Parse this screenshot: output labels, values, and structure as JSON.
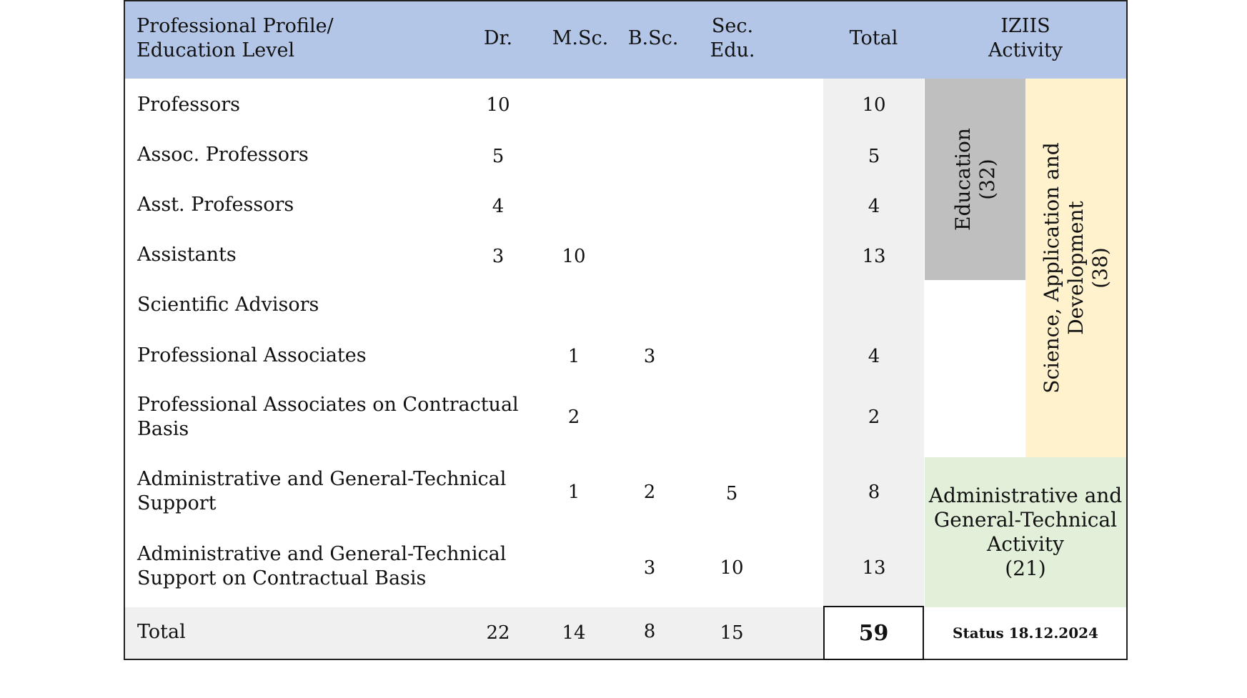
{
  "header": {
    "profile_line1": "Professional Profile/",
    "profile_line2": "Education Level",
    "dr": "Dr.",
    "msc": "M.Sc.",
    "bsc": "B.Sc.",
    "sec_line1": "Sec.",
    "sec_line2": "Edu.",
    "total": "Total",
    "activity_line1": "IZIIS",
    "activity_line2": "Activity"
  },
  "rows": [
    {
      "label_line1": "Professors",
      "label_line2": "",
      "dr": "10",
      "msc": "",
      "bsc": "",
      "sec": "",
      "total": "10"
    },
    {
      "label_line1": "Assoc. Professors",
      "label_line2": "",
      "dr": "5",
      "msc": "",
      "bsc": "",
      "sec": "",
      "total": "5"
    },
    {
      "label_line1": "Asst. Professors",
      "label_line2": "",
      "dr": "4",
      "msc": "",
      "bsc": "",
      "sec": "",
      "total": "4"
    },
    {
      "label_line1": "Assistants",
      "label_line2": "",
      "dr": "3",
      "msc": "10",
      "bsc": "",
      "sec": "",
      "total": "13"
    },
    {
      "label_line1": "Scientific Advisors",
      "label_line2": "",
      "dr": "",
      "msc": "",
      "bsc": "",
      "sec": "",
      "total": ""
    },
    {
      "label_line1": "Professional Associates",
      "label_line2": "",
      "dr": "",
      "msc": "1",
      "bsc": "3",
      "sec": "",
      "total": "4"
    },
    {
      "label_line1": "Professional Associates on Contractual",
      "label_line2": "Basis",
      "dr": "",
      "msc": "2",
      "bsc": "",
      "sec": "",
      "total": "2"
    },
    {
      "label_line1": "Administrative and General-Technical",
      "label_line2": "Support",
      "dr": "",
      "msc": "1",
      "bsc": "2",
      "sec": "5",
      "total": "8"
    },
    {
      "label_line1": "Administrative and General-Technical",
      "label_line2": "Support on Contractual Basis",
      "dr": "",
      "msc": "",
      "bsc": "3",
      "sec": "10",
      "total": "13"
    }
  ],
  "footer": {
    "label": "Total",
    "dr": "22",
    "msc": "14",
    "bsc": "8",
    "sec": "15",
    "total": "59",
    "status": "Status 18.12.2024"
  },
  "activities": {
    "education_line1": "Education",
    "education_line2": "(32)",
    "science_line1": "Science, Application and",
    "science_line2": "Development",
    "science_line3": "(38)",
    "admin_line1": "Administrative and",
    "admin_line2": "General-Technical",
    "admin_line3": "Activity",
    "admin_line4": "(21)"
  },
  "colors": {
    "header_bg": "#b4c6e7",
    "education_bg": "#bfbfbf",
    "science_bg": "#fff2cc",
    "admin_bg": "#e2efd9",
    "total_bg": "#f0f0f0"
  }
}
